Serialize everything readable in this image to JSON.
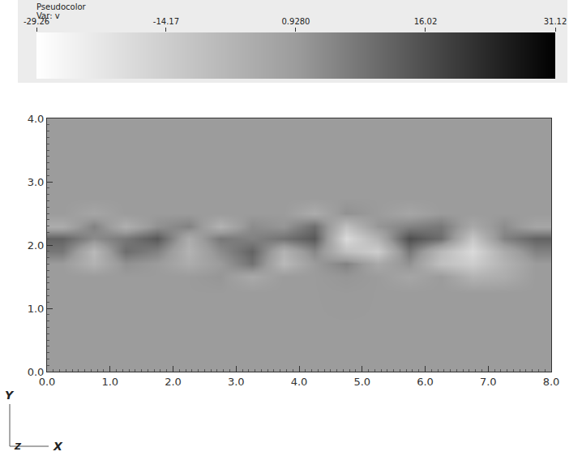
{
  "chart_data": {
    "type": "heatmap",
    "title": "Pseudocolor",
    "subtitle": "Var: v",
    "x_label": "X",
    "y_label": "Y",
    "z_label": "Z",
    "x": [
      0.25,
      0.75,
      1.25,
      1.75,
      2.25,
      2.75,
      3.25,
      3.75,
      4.25,
      4.75,
      5.25,
      5.75,
      6.25,
      6.75,
      7.25,
      7.75
    ],
    "y": [
      0.25,
      0.75,
      1.25,
      1.5,
      1.7,
      1.9,
      2.1,
      2.3,
      2.5,
      2.75,
      3.25,
      3.75
    ],
    "z": [
      [
        1,
        1,
        1,
        1,
        1,
        1,
        1,
        1,
        1,
        1,
        1,
        1,
        1,
        1,
        1,
        1
      ],
      [
        1,
        1,
        1,
        1,
        1,
        1,
        1,
        1,
        1,
        1,
        1,
        1,
        1,
        1,
        1,
        1
      ],
      [
        1,
        1,
        1,
        1,
        1,
        1,
        1,
        1,
        1,
        1.2,
        1,
        1,
        1,
        1,
        1,
        1
      ],
      [
        1,
        1,
        1,
        1,
        1,
        2,
        -3,
        1,
        1,
        2,
        1,
        -2,
        1,
        -6,
        -4,
        1
      ],
      [
        1,
        -6,
        3,
        1,
        -4,
        1,
        9,
        -8,
        1,
        6,
        -3,
        3,
        -10,
        -14,
        -6,
        1
      ],
      [
        8,
        -8,
        10,
        6,
        -6,
        4,
        12,
        -6,
        5,
        -10,
        -14,
        8,
        -8,
        -18,
        -4,
        6
      ],
      [
        12,
        4,
        8,
        14,
        -4,
        8,
        6,
        9,
        14,
        -18,
        -6,
        16,
        10,
        -12,
        6,
        12
      ],
      [
        -4,
        6,
        -5,
        3,
        6,
        -6,
        4,
        2,
        10,
        -10,
        2,
        6,
        8,
        -3,
        4,
        -2
      ],
      [
        1,
        -2,
        1,
        1,
        1,
        1,
        1,
        1,
        -4,
        3,
        1,
        -2,
        1,
        1,
        1,
        1
      ],
      [
        1,
        1,
        1,
        1,
        1,
        1,
        1,
        1,
        1,
        1,
        1,
        1,
        1,
        1,
        1,
        1
      ],
      [
        1,
        1,
        1,
        1,
        1,
        1,
        1,
        1,
        1,
        1,
        1,
        1,
        1,
        1,
        1,
        1
      ],
      [
        1,
        1,
        1,
        1,
        1,
        1,
        1,
        1,
        1,
        1,
        1,
        1,
        1,
        1,
        1,
        1
      ]
    ],
    "xlim": [
      0,
      8
    ],
    "ylim": [
      0,
      4
    ],
    "xticks": [
      {
        "value": 0,
        "label": "0.0"
      },
      {
        "value": 1,
        "label": "1.0"
      },
      {
        "value": 2,
        "label": "2.0"
      },
      {
        "value": 3,
        "label": "3.0"
      },
      {
        "value": 4,
        "label": "4.0"
      },
      {
        "value": 5,
        "label": "5.0"
      },
      {
        "value": 6,
        "label": "6.0"
      },
      {
        "value": 7,
        "label": "7.0"
      },
      {
        "value": 8,
        "label": "8.0"
      }
    ],
    "yticks": [
      {
        "value": 0,
        "label": "0.0"
      },
      {
        "value": 1,
        "label": "1.0"
      },
      {
        "value": 2,
        "label": "2.0"
      },
      {
        "value": 3,
        "label": "3.0"
      },
      {
        "value": 4,
        "label": "4.0"
      }
    ],
    "color_range": [
      -29.26,
      31.12
    ],
    "color_ticks": [
      -29.26,
      -14.17,
      {
        "value": 0.928,
        "label": "0.9280"
      },
      16.02,
      31.12
    ],
    "grid": false
  }
}
